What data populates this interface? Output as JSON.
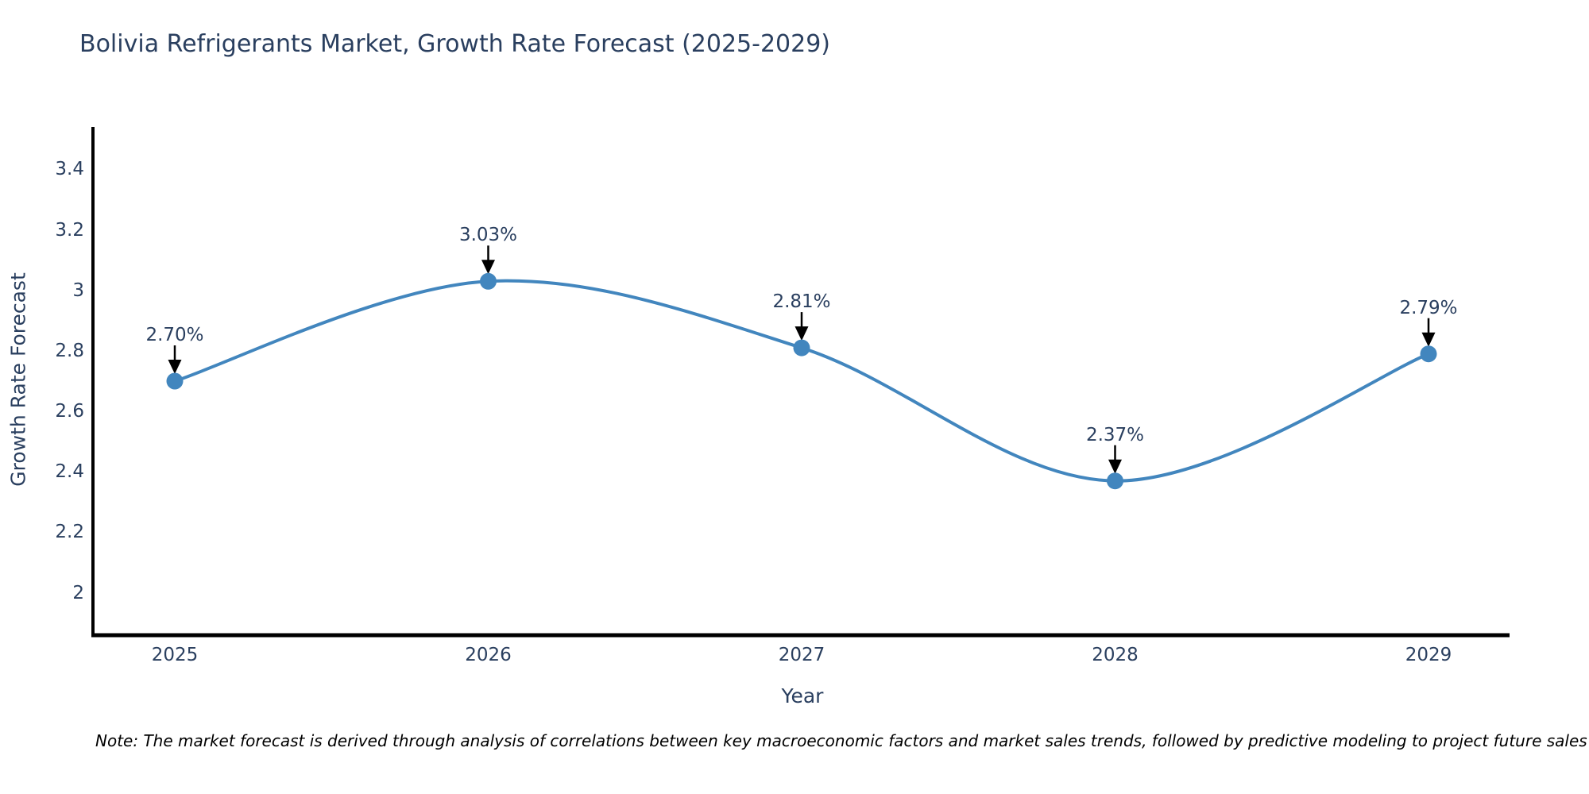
{
  "title": "Bolivia Refrigerants Market, Growth Rate Forecast (2025-2029)",
  "note": "Note: The market forecast is derived through analysis of correlations between key macroeconomic factors and market sales trends, followed by predictive modeling to project future sales",
  "colors": {
    "text": "#2a3f5f",
    "axis": "#000000",
    "line": "#4286be",
    "marker": "#4286be",
    "arrow": "#000000",
    "background": "#ffffff"
  },
  "chart_data": {
    "type": "line",
    "title": "Bolivia Refrigerants Market, Growth Rate Forecast (2025-2029)",
    "xlabel": "Year",
    "ylabel": "Growth Rate Forecast",
    "categories": [
      "2025",
      "2026",
      "2027",
      "2028",
      "2029"
    ],
    "series": [
      {
        "name": "Growth Rate Forecast",
        "values": [
          2.7,
          3.03,
          2.81,
          2.37,
          2.79
        ]
      }
    ],
    "point_labels": [
      "2.70%",
      "3.03%",
      "2.81%",
      "2.37%",
      "2.79%"
    ],
    "yticks": [
      3.4,
      3.2,
      3.0,
      2.8,
      2.6,
      2.4,
      2.2,
      2.0
    ],
    "ytick_labels": [
      "3.4",
      "3.2",
      "3",
      "2.8",
      "2.6",
      "2.4",
      "2.2",
      "2"
    ],
    "ylim": [
      1.86,
      3.54
    ],
    "grid": false,
    "legend_position": "none",
    "line_shape": "spline",
    "annotations_have_arrows": true
  }
}
